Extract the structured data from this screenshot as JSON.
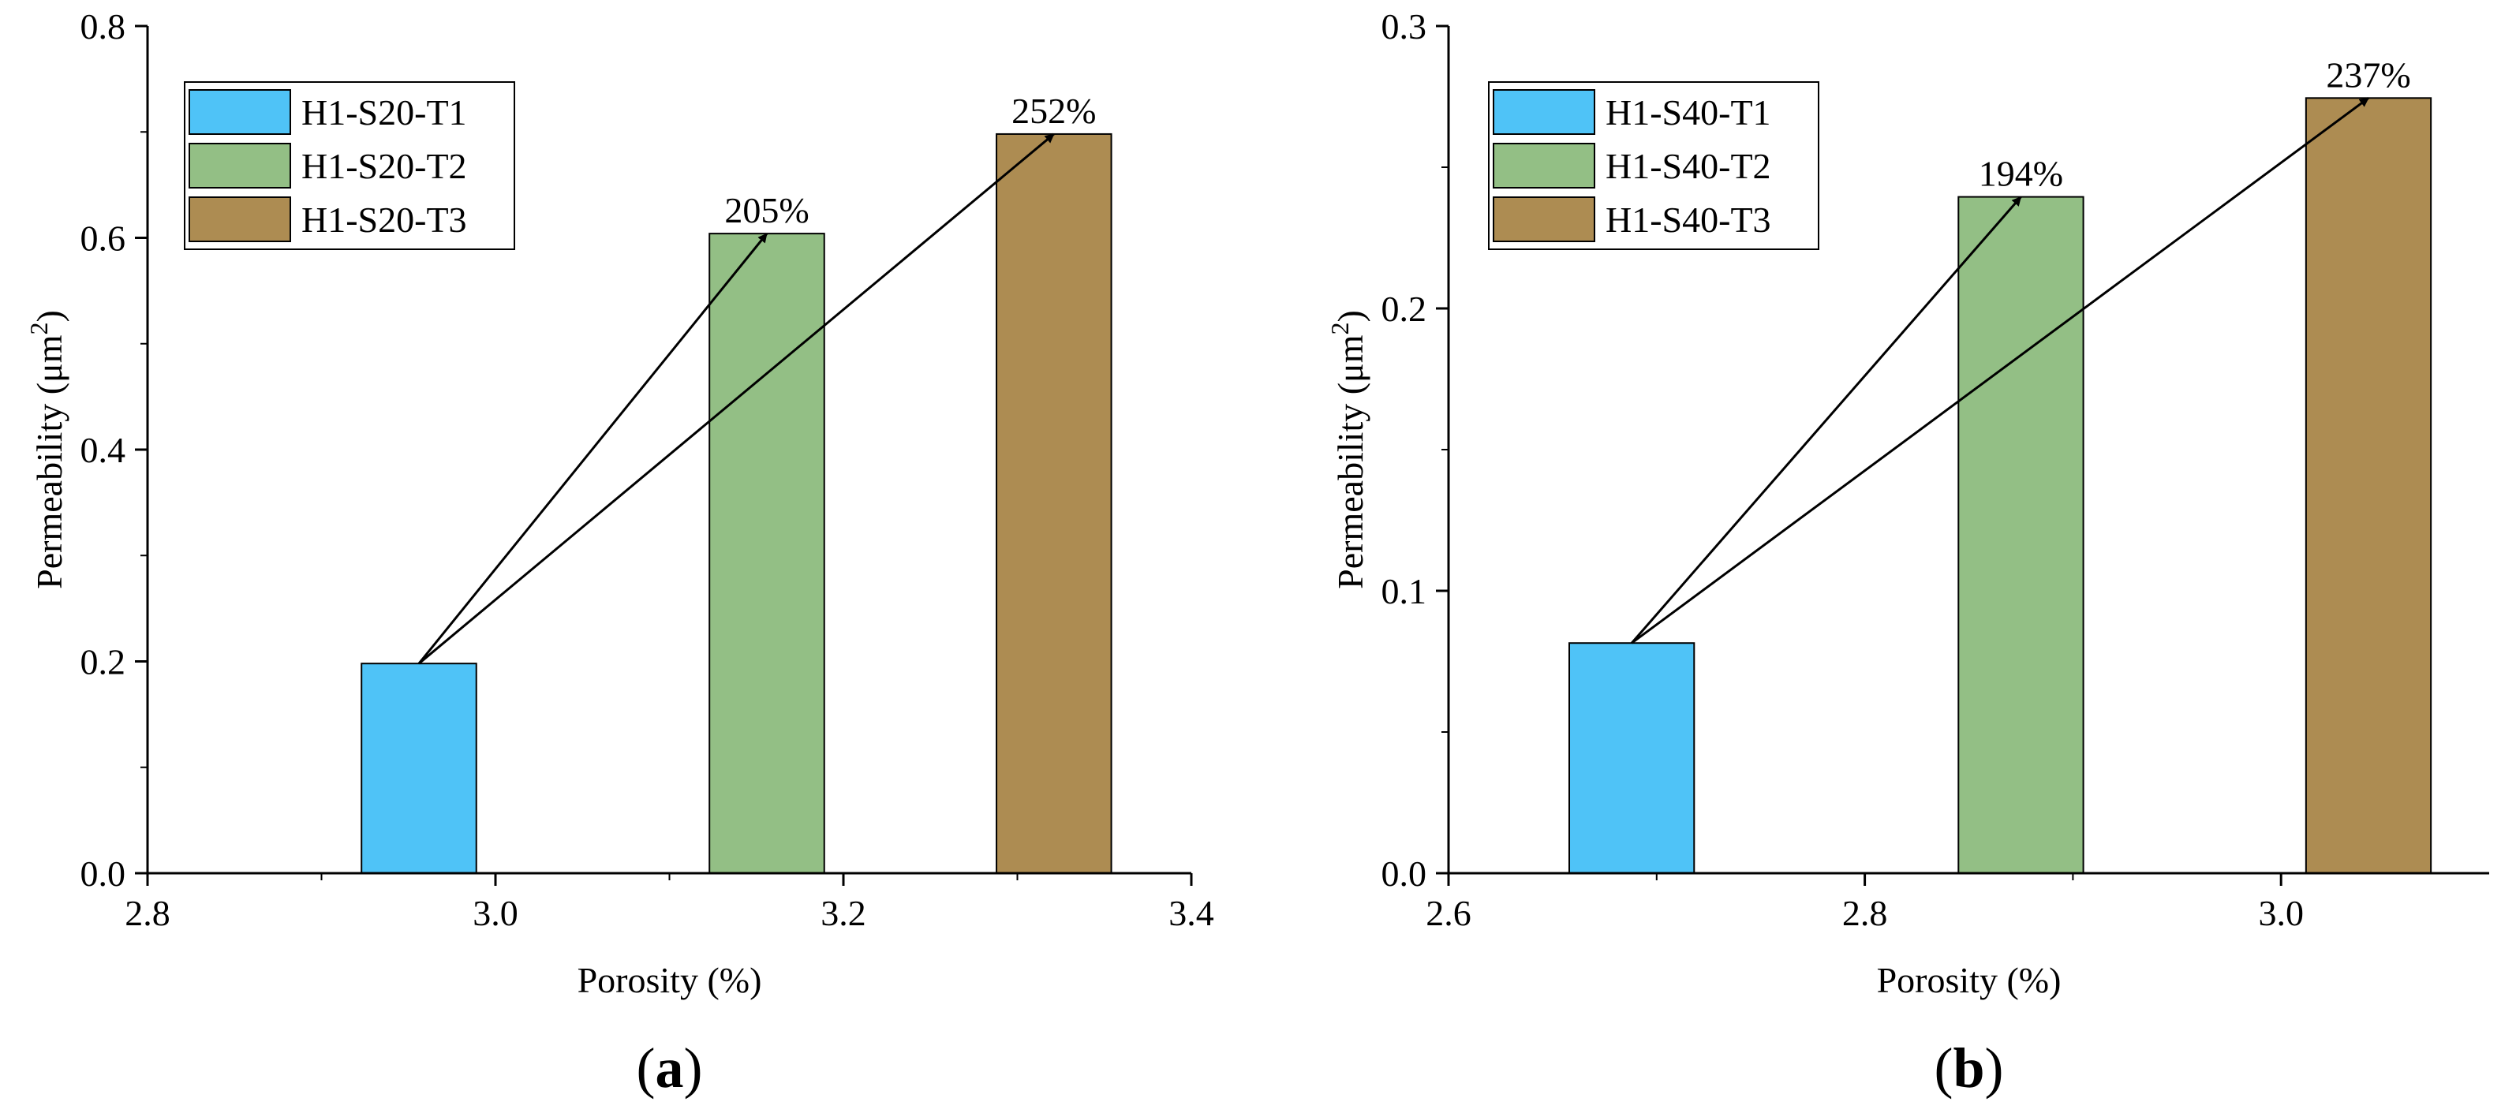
{
  "chart_data": [
    {
      "type": "bar",
      "panel_label": "a",
      "xlabel": "Porosity (%)",
      "ylabel_main": "Permeability (μm",
      "ylabel_sup": "2",
      "ylabel_end": ")",
      "xlim": [
        2.8,
        3.4
      ],
      "ylim": [
        0,
        0.8
      ],
      "xticks": [
        2.8,
        3.0,
        3.2,
        3.4
      ],
      "yticks": [
        0.0,
        0.2,
        0.4,
        0.6,
        0.8
      ],
      "xtick_labels": [
        "2.8",
        "3.0",
        "3.2",
        "3.4"
      ],
      "ytick_labels": [
        "0.0",
        "0.2",
        "0.4",
        "0.6",
        "0.8"
      ],
      "bar_width": 0.066,
      "legend_position": "top-left",
      "series": [
        {
          "name": "H1-S20-T1",
          "x": 2.956,
          "value": 0.198,
          "color": "#4fc3f7"
        },
        {
          "name": "H1-S20-T2",
          "x": 3.156,
          "value": 0.604,
          "color": "#93bf85"
        },
        {
          "name": "H1-S20-T3",
          "x": 3.321,
          "value": 0.698,
          "color": "#ad8c52"
        }
      ],
      "annotations": [
        {
          "text": "205%",
          "target": "H1-S20-T2"
        },
        {
          "text": "252%",
          "target": "H1-S20-T3"
        }
      ]
    },
    {
      "type": "bar",
      "panel_label": "b",
      "xlabel": "Porosity (%)",
      "ylabel_main": "Permeability (μm",
      "ylabel_sup": "2",
      "ylabel_end": ")",
      "xlim": [
        2.6,
        3.1
      ],
      "ylim": [
        0,
        0.3
      ],
      "xticks": [
        2.6,
        2.8,
        3.0
      ],
      "yticks": [
        0.0,
        0.1,
        0.2,
        0.3
      ],
      "xtick_labels": [
        "2.6",
        "2.8",
        "3.0"
      ],
      "ytick_labels": [
        "0.0",
        "0.1",
        "0.2",
        "0.3"
      ],
      "bar_width": 0.06,
      "legend_position": "top-left",
      "series": [
        {
          "name": "H1-S40-T1",
          "x": 2.688,
          "value": 0.0815,
          "color": "#4fc3f7"
        },
        {
          "name": "H1-S40-T2",
          "x": 2.875,
          "value": 0.2395,
          "color": "#93bf85"
        },
        {
          "name": "H1-S40-T3",
          "x": 3.042,
          "value": 0.2745,
          "color": "#ad8c52"
        }
      ],
      "annotations": [
        {
          "text": "194%",
          "target": "H1-S40-T2"
        },
        {
          "text": "237%",
          "target": "H1-S40-T3"
        }
      ]
    }
  ]
}
